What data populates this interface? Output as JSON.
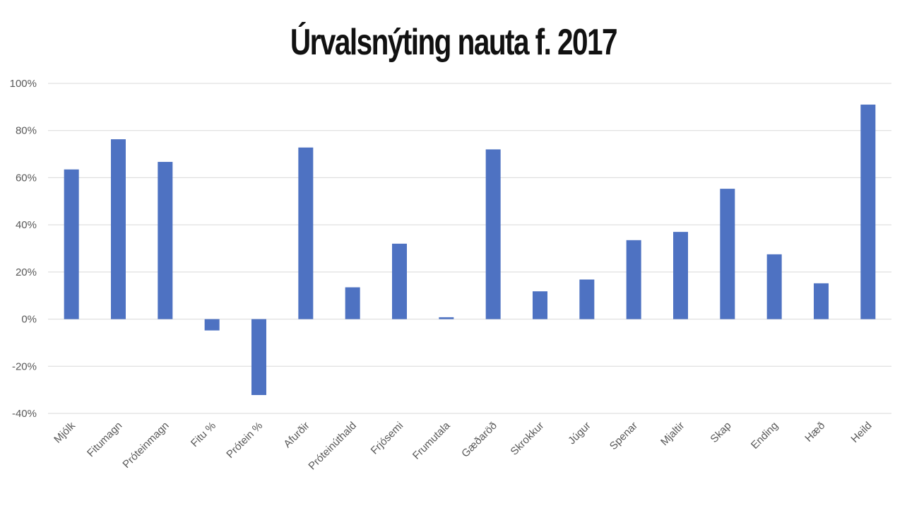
{
  "chart_data": {
    "type": "bar",
    "title": "Úrvalsnýting nauta f. 2017",
    "xlabel": "",
    "ylabel": "",
    "ylim": [
      -40,
      100
    ],
    "yticks": [
      "100%",
      "80%",
      "60%",
      "40%",
      "20%",
      "0%",
      "-20%",
      "-40%"
    ],
    "ytick_values": [
      100,
      80,
      60,
      40,
      20,
      0,
      -20,
      -40
    ],
    "grid": true,
    "bar_color": "#4E72C2",
    "grid_color": "#D9D9D9",
    "categories": [
      "Mjólk",
      "Fitumagn",
      "Próteinmagn",
      "Fitu %",
      "Prótein %",
      "Afurðir",
      "Próteinúthald",
      "Frjósemi",
      "Frumutala",
      "Gæðaröð",
      "Skrokkur",
      "Júgur",
      "Spenar",
      "Mjaltir",
      "Skap",
      "Ending",
      "Hæð",
      "Heild"
    ],
    "values": [
      63.5,
      76.3,
      66.7,
      -4.8,
      -32.2,
      72.8,
      13.5,
      32.0,
      0.8,
      72.0,
      11.8,
      16.8,
      33.5,
      37.0,
      55.3,
      27.5,
      15.2,
      91.0
    ]
  }
}
